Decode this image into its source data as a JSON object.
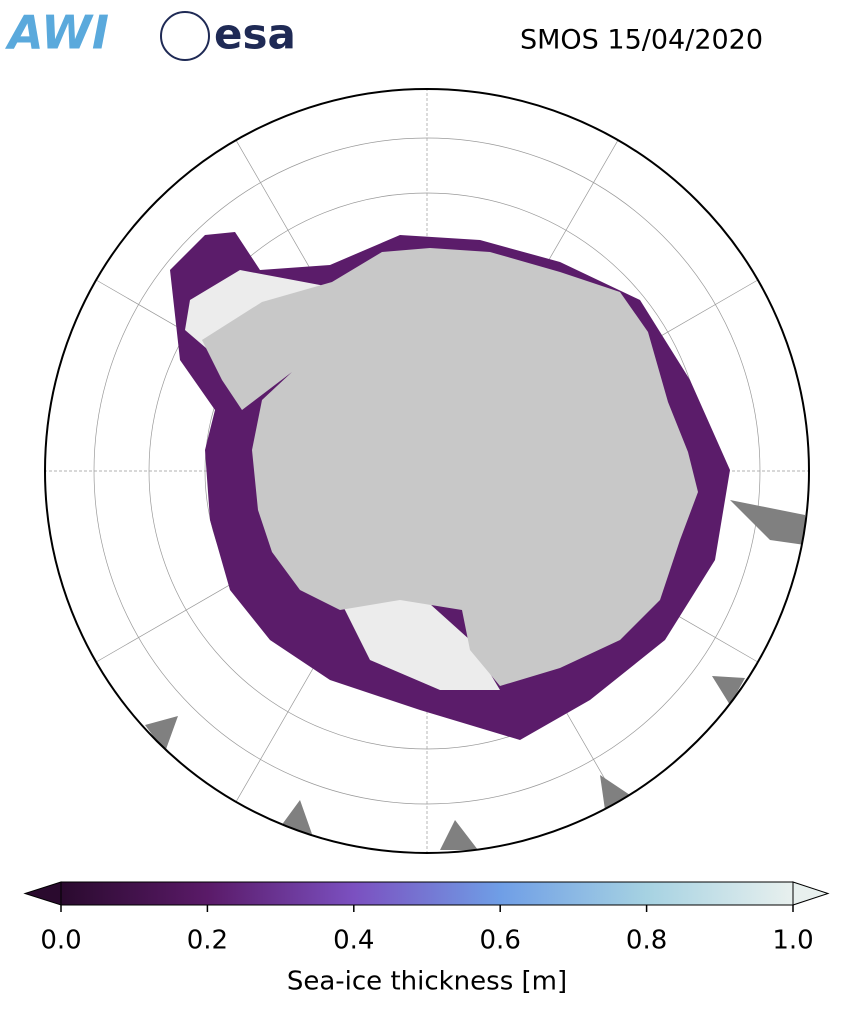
{
  "header": {
    "logos": [
      "AWI",
      "esa"
    ],
    "title": "SMOS 15/04/2020"
  },
  "colorbar": {
    "label": "Sea-ice thickness [m]",
    "lim": [
      0,
      1
    ],
    "ticks": [
      {
        "value": 0,
        "label": "0.0"
      },
      0.2,
      0.4,
      0.6,
      0.8,
      {
        "value": 1,
        "label": "1.0"
      }
    ],
    "colors": [
      "#2a0a2e",
      "#5a1a68",
      "#7b50c0",
      "#6f9ee6",
      "#a6d2e2",
      "#e8f0ee"
    ]
  }
}
